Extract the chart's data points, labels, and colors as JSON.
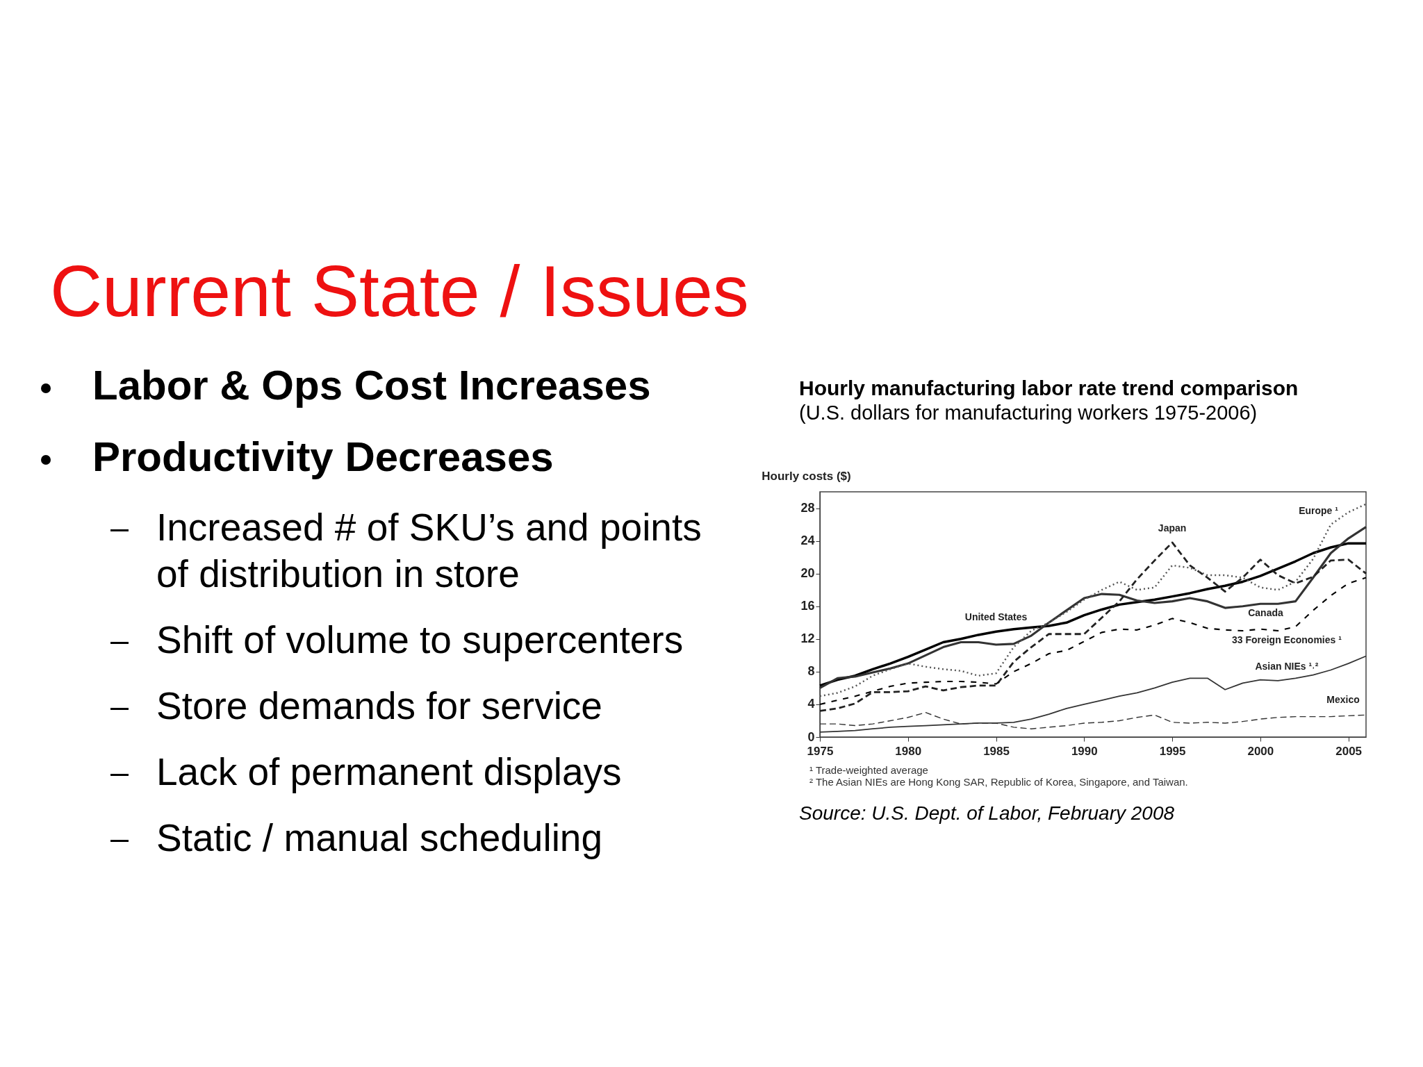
{
  "chart_data": {
    "type": "line",
    "title": "Hourly manufacturing labor rate trend comparison",
    "subtitle": "(U.S. dollars for manufacturing workers 1975-2006)",
    "ylabel": "Hourly costs ($)",
    "x": [
      1975,
      1976,
      1977,
      1978,
      1979,
      1980,
      1981,
      1982,
      1983,
      1984,
      1985,
      1986,
      1987,
      1988,
      1989,
      1990,
      1991,
      1992,
      1993,
      1994,
      1995,
      1996,
      1997,
      1998,
      1999,
      2000,
      2001,
      2002,
      2003,
      2004,
      2005,
      2006
    ],
    "series": [
      {
        "name": "United States",
        "color": "#000000",
        "line_style": "solid",
        "values": [
          6.3,
          7.0,
          7.5,
          8.3,
          9.0,
          9.8,
          10.7,
          11.6,
          12.0,
          12.5,
          12.9,
          13.2,
          13.4,
          13.6,
          14.0,
          14.9,
          15.6,
          16.2,
          16.5,
          16.8,
          17.2,
          17.6,
          18.1,
          18.5,
          19.0,
          19.7,
          20.6,
          21.5,
          22.5,
          23.2,
          23.7,
          23.7
        ]
      },
      {
        "name": "Canada",
        "color": "#333333",
        "line_style": "solid",
        "values": [
          6.0,
          7.2,
          7.4,
          7.9,
          8.4,
          9.0,
          10.0,
          11.0,
          11.6,
          11.6,
          11.3,
          11.4,
          12.4,
          14.0,
          15.5,
          17.0,
          17.5,
          17.4,
          16.7,
          16.4,
          16.6,
          17.0,
          16.6,
          15.8,
          16.0,
          16.3,
          16.3,
          16.6,
          19.5,
          22.5,
          24.3,
          25.7
        ]
      },
      {
        "name": "Japan",
        "color": "#222222",
        "line_style": "dashed",
        "values": [
          3.2,
          3.5,
          4.1,
          5.5,
          5.5,
          5.6,
          6.2,
          5.7,
          6.1,
          6.3,
          6.3,
          9.2,
          11.0,
          12.6,
          12.6,
          12.6,
          14.6,
          16.6,
          19.3,
          21.6,
          23.8,
          21.0,
          19.5,
          17.8,
          19.5,
          21.7,
          19.8,
          18.8,
          19.6,
          21.6,
          21.7,
          20.0
        ]
      },
      {
        "name": "Europe ¹",
        "color": "#555555",
        "line_style": "dotted",
        "values": [
          5.0,
          5.4,
          6.2,
          7.5,
          8.3,
          9.0,
          8.6,
          8.3,
          8.1,
          7.5,
          7.8,
          11.0,
          13.0,
          14.0,
          15.3,
          16.8,
          18.0,
          19.0,
          18.0,
          18.3,
          21.0,
          20.7,
          19.8,
          19.8,
          19.5,
          18.3,
          18.0,
          19.0,
          21.8,
          26.0,
          27.5,
          28.5
        ]
      },
      {
        "name": "33 Foreign Economies ¹",
        "color": "#000000",
        "line_style": "dashed",
        "values": [
          4.0,
          4.5,
          5.0,
          5.6,
          6.2,
          6.6,
          6.7,
          6.8,
          6.8,
          6.7,
          6.5,
          8.0,
          9.0,
          10.2,
          10.6,
          11.7,
          12.8,
          13.2,
          13.1,
          13.7,
          14.5,
          14.0,
          13.3,
          13.1,
          13.0,
          13.2,
          13.0,
          13.5,
          15.5,
          17.3,
          18.8,
          19.5
        ]
      },
      {
        "name": "Asian NIEs ¹˒²",
        "color": "#333333",
        "line_style": "solid",
        "values": [
          0.6,
          0.7,
          0.8,
          1.0,
          1.2,
          1.3,
          1.4,
          1.5,
          1.6,
          1.7,
          1.7,
          1.8,
          2.2,
          2.8,
          3.5,
          4.0,
          4.5,
          5.0,
          5.4,
          6.0,
          6.7,
          7.2,
          7.2,
          5.8,
          6.6,
          7.0,
          6.9,
          7.2,
          7.6,
          8.2,
          9.0,
          9.9
        ]
      },
      {
        "name": "Mexico",
        "color": "#333333",
        "line_style": "dashed",
        "values": [
          1.6,
          1.6,
          1.4,
          1.6,
          2.0,
          2.4,
          3.0,
          2.2,
          1.6,
          1.7,
          1.7,
          1.2,
          1.0,
          1.2,
          1.4,
          1.7,
          1.8,
          2.0,
          2.4,
          2.7,
          1.8,
          1.7,
          1.8,
          1.7,
          1.9,
          2.2,
          2.4,
          2.5,
          2.5,
          2.5,
          2.6,
          2.7
        ]
      }
    ],
    "xlim": [
      1975,
      2006
    ],
    "xticks": [
      1975,
      1980,
      1985,
      1990,
      1995,
      2000,
      2005
    ],
    "ylim": [
      0,
      30
    ],
    "yticks": [
      0,
      4,
      8,
      12,
      16,
      20,
      24,
      28
    ],
    "grid": false,
    "legend": false,
    "marker": "none",
    "annotations": [
      "Current State / Issues",
      "Labor & Ops Cost Increases",
      "Productivity Decreases",
      "Increased # of SKU’s and points of distribution in store",
      "Shift of volume to supercenters",
      "Store demands for service",
      "Lack of permanent displays",
      "Static  / manual scheduling",
      "¹ Trade-weighted average",
      "² The Asian NIEs are Hong Kong SAR, Republic of Korea, Singapore, and Taiwan.",
      "Source: U.S. Dept. of Labor, February 2008"
    ]
  }
}
